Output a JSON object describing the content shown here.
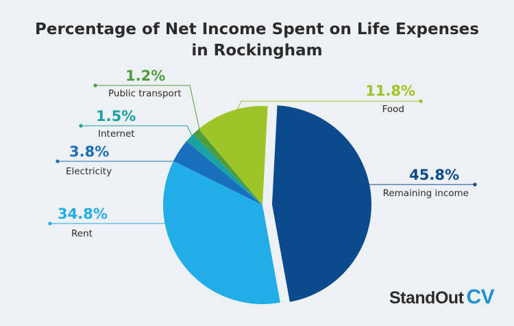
{
  "title_line1": "Percentage of Net Income Spent on Life Expenses",
  "title_line2": "in Rockingham",
  "brand": {
    "part1": "StandOut",
    "part2": "CV"
  },
  "chart_data": {
    "type": "pie",
    "title": "Percentage of Net Income Spent on Life Expenses in Rockingham",
    "unit": "%",
    "slices": [
      {
        "label": "Remaining income",
        "value": 45.8,
        "display": "45.8%",
        "color": "#0b4a8c",
        "exploded": true
      },
      {
        "label": "Rent",
        "value": 34.8,
        "display": "34.8%",
        "color": "#22ade6"
      },
      {
        "label": "Electricity",
        "value": 3.8,
        "display": "3.8%",
        "color": "#1a6fbd"
      },
      {
        "label": "Internet",
        "value": 1.5,
        "display": "1.5%",
        "color": "#1aa3a3"
      },
      {
        "label": "Public transport",
        "value": 1.2,
        "display": "1.2%",
        "color": "#4f9c3c"
      },
      {
        "label": "Food",
        "value": 11.8,
        "display": "11.8%",
        "color": "#9dc428"
      }
    ]
  }
}
